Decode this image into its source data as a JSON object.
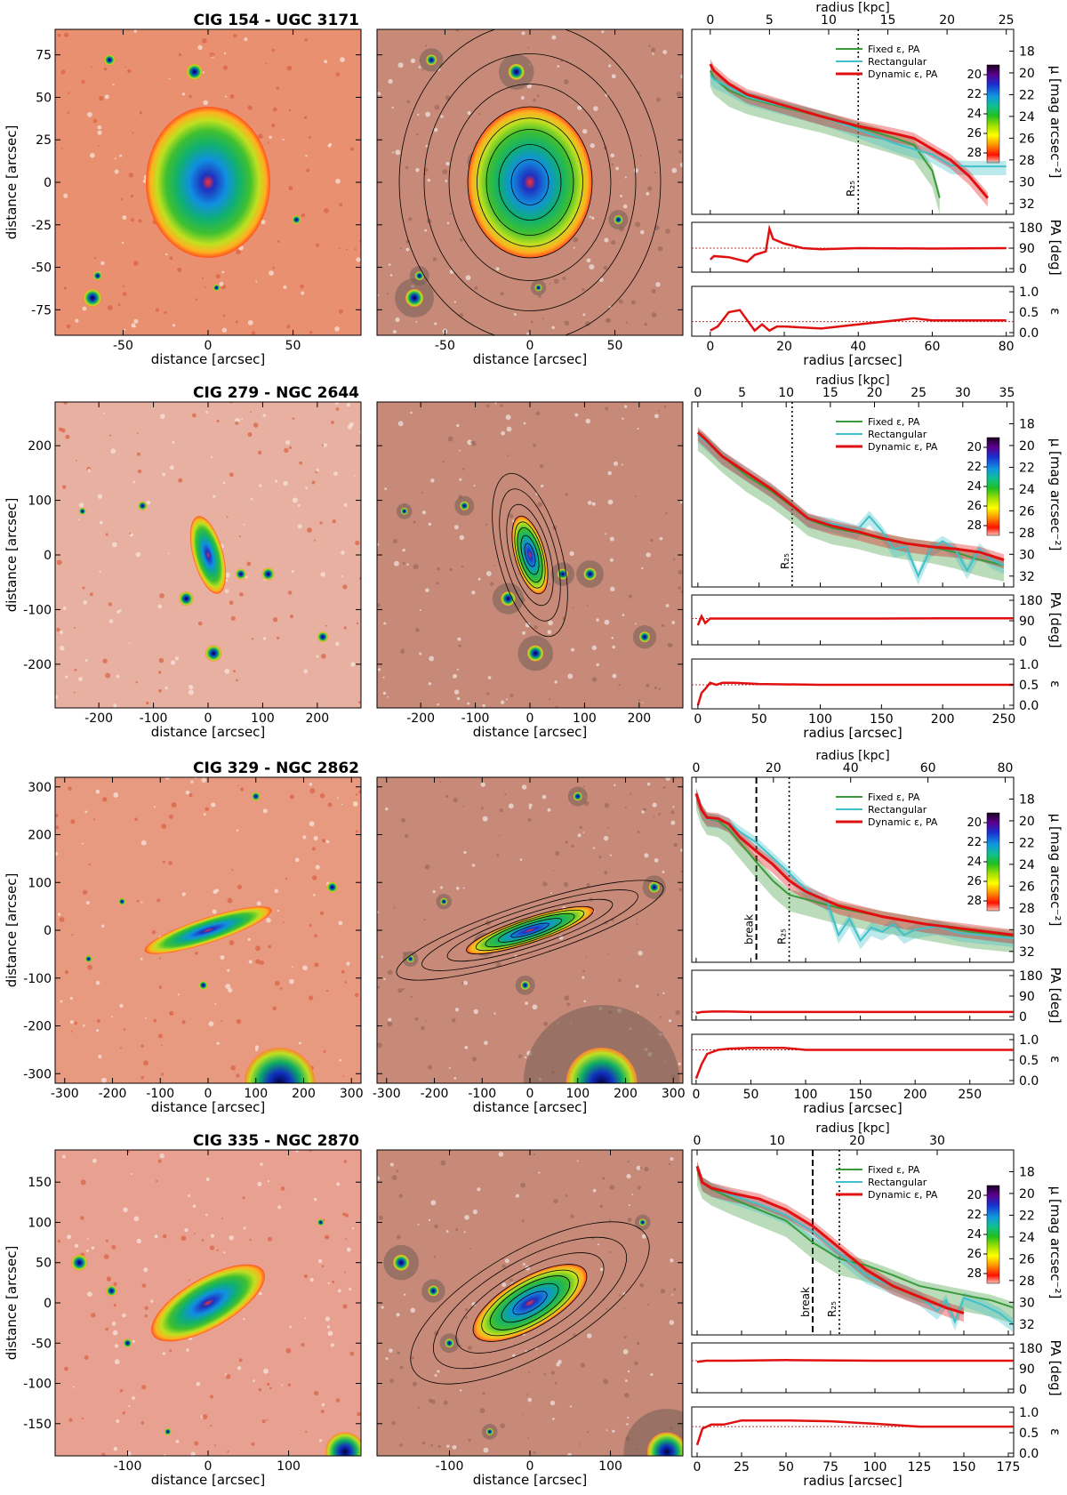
{
  "legend": {
    "fixed": "Fixed ε, PA",
    "rect": "Rectangular",
    "dynamic": "Dynamic ε, PA"
  },
  "labels": {
    "distance": "distance [arcsec]",
    "radius_arcsec": "radius [arcsec]",
    "radius_kpc": "radius [kpc]",
    "mu": "μ [mag arcsec⁻²]",
    "pa": "PA [deg]",
    "eps": "ε",
    "r25": "R₂₅",
    "break": "break"
  },
  "colors": {
    "fixed": "#3a9a3a",
    "rect": "#40c0c8",
    "dynamic": "#e01010"
  },
  "colorbar_ticks": [
    20,
    22,
    24,
    26,
    28
  ],
  "mu_ticks": [
    18,
    20,
    22,
    24,
    26,
    28,
    30,
    32
  ],
  "pa_ticks": [
    0,
    90,
    180
  ],
  "eps_ticks": [
    "0.0",
    "0.5",
    "1.0"
  ],
  "chart_data": [
    {
      "type": "line",
      "title": "CIG 154  -  UGC  3171",
      "img_extent": 90,
      "img_ticks": [
        -50,
        0,
        50
      ],
      "img_yticks": [
        -75,
        -50,
        -25,
        0,
        25,
        50,
        75
      ],
      "xlim_arcsec": [
        -5,
        82
      ],
      "xticks_arcsec": [
        0,
        20,
        40,
        60,
        80
      ],
      "kpc_ticks": [
        0,
        5,
        10,
        15,
        20,
        25
      ],
      "kpc_scale": 0.3125,
      "r25": 40,
      "break": null,
      "ylim_mu": [
        33,
        16
      ],
      "series": [
        {
          "name": "Fixed ε, PA",
          "x": [
            0,
            1,
            5,
            10,
            20,
            30,
            40,
            50,
            55,
            60,
            62
          ],
          "y": [
            19.8,
            20.5,
            21.6,
            22.3,
            23.2,
            24.0,
            25.0,
            26.0,
            26.6,
            29.0,
            31.5
          ]
        },
        {
          "name": "Rectangular",
          "x": [
            0,
            1,
            5,
            10,
            20,
            30,
            40,
            50,
            55,
            60,
            65,
            70,
            75,
            80
          ],
          "y": [
            20.2,
            20.6,
            21.3,
            22.2,
            23.1,
            24.0,
            25.2,
            26.5,
            27.0,
            27.5,
            28.5,
            28.6,
            28.6,
            28.6
          ]
        },
        {
          "name": "Dynamic ε, PA",
          "x": [
            0,
            1,
            5,
            10,
            20,
            30,
            40,
            50,
            55,
            60,
            65,
            70,
            75
          ],
          "y": [
            19.2,
            19.8,
            21.0,
            22.0,
            23.0,
            24.0,
            24.9,
            25.6,
            26.0,
            27.0,
            28.0,
            29.5,
            31.5
          ]
        }
      ],
      "pa": {
        "x": [
          0,
          1,
          5,
          10,
          12,
          15,
          16,
          17,
          20,
          25,
          30,
          40,
          60,
          80
        ],
        "y": [
          40,
          55,
          50,
          30,
          60,
          75,
          175,
          130,
          110,
          90,
          85,
          90,
          88,
          90
        ],
        "ref": 90
      },
      "eps": {
        "x": [
          0,
          2,
          5,
          8,
          10,
          12,
          14,
          16,
          18,
          20,
          30,
          40,
          50,
          55,
          60,
          70,
          80
        ],
        "y": [
          0.05,
          0.15,
          0.5,
          0.55,
          0.3,
          0.05,
          0.2,
          0.05,
          0.15,
          0.15,
          0.1,
          0.2,
          0.3,
          0.35,
          0.3,
          0.3,
          0.3
        ],
        "ref": 0.27
      }
    },
    {
      "type": "line",
      "title": "CIG 279  -  NGC  2644",
      "img_extent": 280,
      "img_ticks": [
        -200,
        -100,
        0,
        100,
        200
      ],
      "img_yticks": [
        -200,
        -100,
        0,
        100,
        200
      ],
      "xlim_arcsec": [
        -5,
        258
      ],
      "xticks_arcsec": [
        0,
        50,
        100,
        150,
        200,
        250
      ],
      "kpc_ticks": [
        0,
        5,
        10,
        15,
        20,
        25,
        30,
        35
      ],
      "kpc_scale": 0.1386,
      "r25": 77,
      "break": null,
      "ylim_mu": [
        33,
        16
      ],
      "series": [
        {
          "name": "Fixed ε, PA",
          "x": [
            0,
            5,
            20,
            40,
            60,
            77,
            90,
            110,
            130,
            150,
            170,
            190,
            210,
            230,
            250
          ],
          "y": [
            19.0,
            19.4,
            21.0,
            22.8,
            24.2,
            25.6,
            26.8,
            27.6,
            28.0,
            28.6,
            29.0,
            29.3,
            29.8,
            30.5,
            31.0
          ]
        },
        {
          "name": "Rectangular",
          "x": [
            0,
            5,
            20,
            40,
            60,
            77,
            90,
            110,
            130,
            140,
            150,
            160,
            170,
            180,
            190,
            200,
            210,
            220,
            230,
            240,
            250
          ],
          "y": [
            19.0,
            19.5,
            21.0,
            22.5,
            24.0,
            25.5,
            26.8,
            27.2,
            27.8,
            26.5,
            27.8,
            29.5,
            29.3,
            32.0,
            29.5,
            28.8,
            29.5,
            31.5,
            29.5,
            30.5,
            31.0
          ]
        },
        {
          "name": "Dynamic ε, PA",
          "x": [
            0,
            5,
            20,
            40,
            60,
            77,
            90,
            110,
            130,
            150,
            170,
            190,
            210,
            230,
            250
          ],
          "y": [
            18.8,
            19.3,
            21.0,
            22.5,
            24.0,
            25.5,
            26.7,
            27.4,
            27.9,
            28.5,
            29.0,
            29.3,
            29.5,
            29.8,
            30.5
          ]
        }
      ],
      "pa": {
        "x": [
          0,
          3,
          6,
          10,
          20,
          50,
          100,
          150,
          200,
          258
        ],
        "y": [
          70,
          110,
          80,
          100,
          100,
          100,
          100,
          100,
          101,
          101
        ],
        "ref": 100
      },
      "eps": {
        "x": [
          0,
          3,
          6,
          10,
          15,
          20,
          30,
          50,
          100,
          150,
          200,
          258
        ],
        "y": [
          0.0,
          0.3,
          0.4,
          0.55,
          0.5,
          0.55,
          0.55,
          0.52,
          0.5,
          0.5,
          0.5,
          0.5
        ],
        "ref": 0.5
      }
    },
    {
      "type": "line",
      "title": "CIG 329  -  NGC  2862",
      "img_extent": 320,
      "img_ticks": [
        -300,
        -200,
        -100,
        0,
        100,
        200,
        300
      ],
      "img_yticks": [
        -300,
        -200,
        -100,
        0,
        100,
        200,
        300
      ],
      "xlim_arcsec": [
        -4,
        290
      ],
      "xticks_arcsec": [
        0,
        50,
        100,
        150,
        200,
        250
      ],
      "kpc_ticks": [
        0,
        20,
        40,
        60,
        80
      ],
      "kpc_scale": 0.2834,
      "r25": 85,
      "break": 55,
      "ylim_mu": [
        33,
        16
      ],
      "series": [
        {
          "name": "Fixed ε, PA",
          "x": [
            0,
            5,
            10,
            20,
            30,
            40,
            55,
            70,
            85,
            100,
            130,
            170,
            210,
            250,
            290
          ],
          "y": [
            17.5,
            19.0,
            19.8,
            20.0,
            20.8,
            22.0,
            23.8,
            25.5,
            26.8,
            27.2,
            28.0,
            28.8,
            29.5,
            30.2,
            30.6
          ]
        },
        {
          "name": "Rectangular",
          "x": [
            0,
            5,
            10,
            20,
            30,
            40,
            55,
            70,
            85,
            100,
            120,
            130,
            140,
            150,
            160,
            170,
            180,
            190,
            200,
            220,
            240,
            260,
            290
          ],
          "y": [
            17.5,
            19.0,
            19.8,
            19.9,
            20.2,
            21.0,
            22.0,
            23.4,
            24.8,
            26.3,
            27.5,
            30.5,
            29.0,
            31.0,
            29.8,
            30.2,
            29.5,
            30.5,
            30.0,
            29.7,
            30.3,
            30.5,
            30.8
          ]
        },
        {
          "name": "Dynamic ε, PA",
          "x": [
            0,
            5,
            10,
            20,
            30,
            40,
            55,
            70,
            85,
            100,
            130,
            170,
            210,
            250,
            290
          ],
          "y": [
            17.5,
            19.0,
            19.7,
            19.8,
            20.3,
            21.5,
            22.8,
            24.0,
            25.5,
            26.5,
            27.8,
            28.8,
            29.5,
            30.0,
            30.5
          ]
        }
      ],
      "pa": {
        "x": [
          0,
          5,
          15,
          30,
          50,
          100,
          150,
          200,
          250,
          290
        ],
        "y": [
          15,
          20,
          22,
          22,
          20,
          20,
          20,
          20,
          20,
          20
        ],
        "ref": 20
      },
      "eps": {
        "x": [
          0,
          5,
          10,
          20,
          30,
          50,
          80,
          100,
          150,
          200,
          250,
          290
        ],
        "y": [
          0.05,
          0.4,
          0.65,
          0.75,
          0.78,
          0.8,
          0.8,
          0.75,
          0.75,
          0.75,
          0.75,
          0.75
        ],
        "ref": 0.75
      }
    },
    {
      "type": "line",
      "title": "CIG 335  -  NGC  2870",
      "img_extent": 190,
      "img_ticks": [
        -100,
        0,
        100
      ],
      "img_yticks": [
        -150,
        -100,
        -50,
        0,
        50,
        100,
        150
      ],
      "xlim_arcsec": [
        -3,
        178
      ],
      "xticks_arcsec": [
        0,
        25,
        50,
        75,
        100,
        125,
        150,
        175
      ],
      "kpc_ticks": [
        0,
        10,
        20,
        30
      ],
      "kpc_scale": 0.2222,
      "r25": 80,
      "break": 65,
      "ylim_mu": [
        33,
        16
      ],
      "series": [
        {
          "name": "Fixed ε, PA",
          "x": [
            0,
            3,
            8,
            20,
            35,
            50,
            65,
            80,
            95,
            110,
            125,
            140,
            155,
            165,
            178
          ],
          "y": [
            17.8,
            19.0,
            19.6,
            20.5,
            21.5,
            22.5,
            24.5,
            26.0,
            26.6,
            27.5,
            28.5,
            29.0,
            29.5,
            29.8,
            30.5
          ]
        },
        {
          "name": "Rectangular",
          "x": [
            0,
            3,
            8,
            20,
            35,
            50,
            65,
            80,
            95,
            110,
            125,
            135,
            140,
            145,
            150,
            160,
            170,
            178
          ],
          "y": [
            17.5,
            19.0,
            19.5,
            20.2,
            21.0,
            22.0,
            23.5,
            25.5,
            27.5,
            28.5,
            29.5,
            30.8,
            29.8,
            31.8,
            29.6,
            30.2,
            31.0,
            32.0
          ]
        },
        {
          "name": "Dynamic ε, PA",
          "x": [
            0,
            3,
            8,
            20,
            35,
            50,
            65,
            80,
            95,
            110,
            125,
            140,
            150
          ],
          "y": [
            17.5,
            19.0,
            19.5,
            20.0,
            20.5,
            21.5,
            23.0,
            25.0,
            27.0,
            28.5,
            29.5,
            30.5,
            31.0
          ]
        }
      ],
      "pa": {
        "x": [
          0,
          5,
          20,
          50,
          100,
          150,
          178
        ],
        "y": [
          120,
          125,
          125,
          128,
          125,
          125,
          125
        ],
        "ref": 125
      },
      "eps": {
        "x": [
          0,
          3,
          8,
          15,
          25,
          50,
          75,
          100,
          125,
          150,
          178
        ],
        "y": [
          0.2,
          0.6,
          0.7,
          0.7,
          0.8,
          0.8,
          0.78,
          0.72,
          0.65,
          0.65,
          0.65
        ],
        "ref": 0.65
      }
    }
  ]
}
